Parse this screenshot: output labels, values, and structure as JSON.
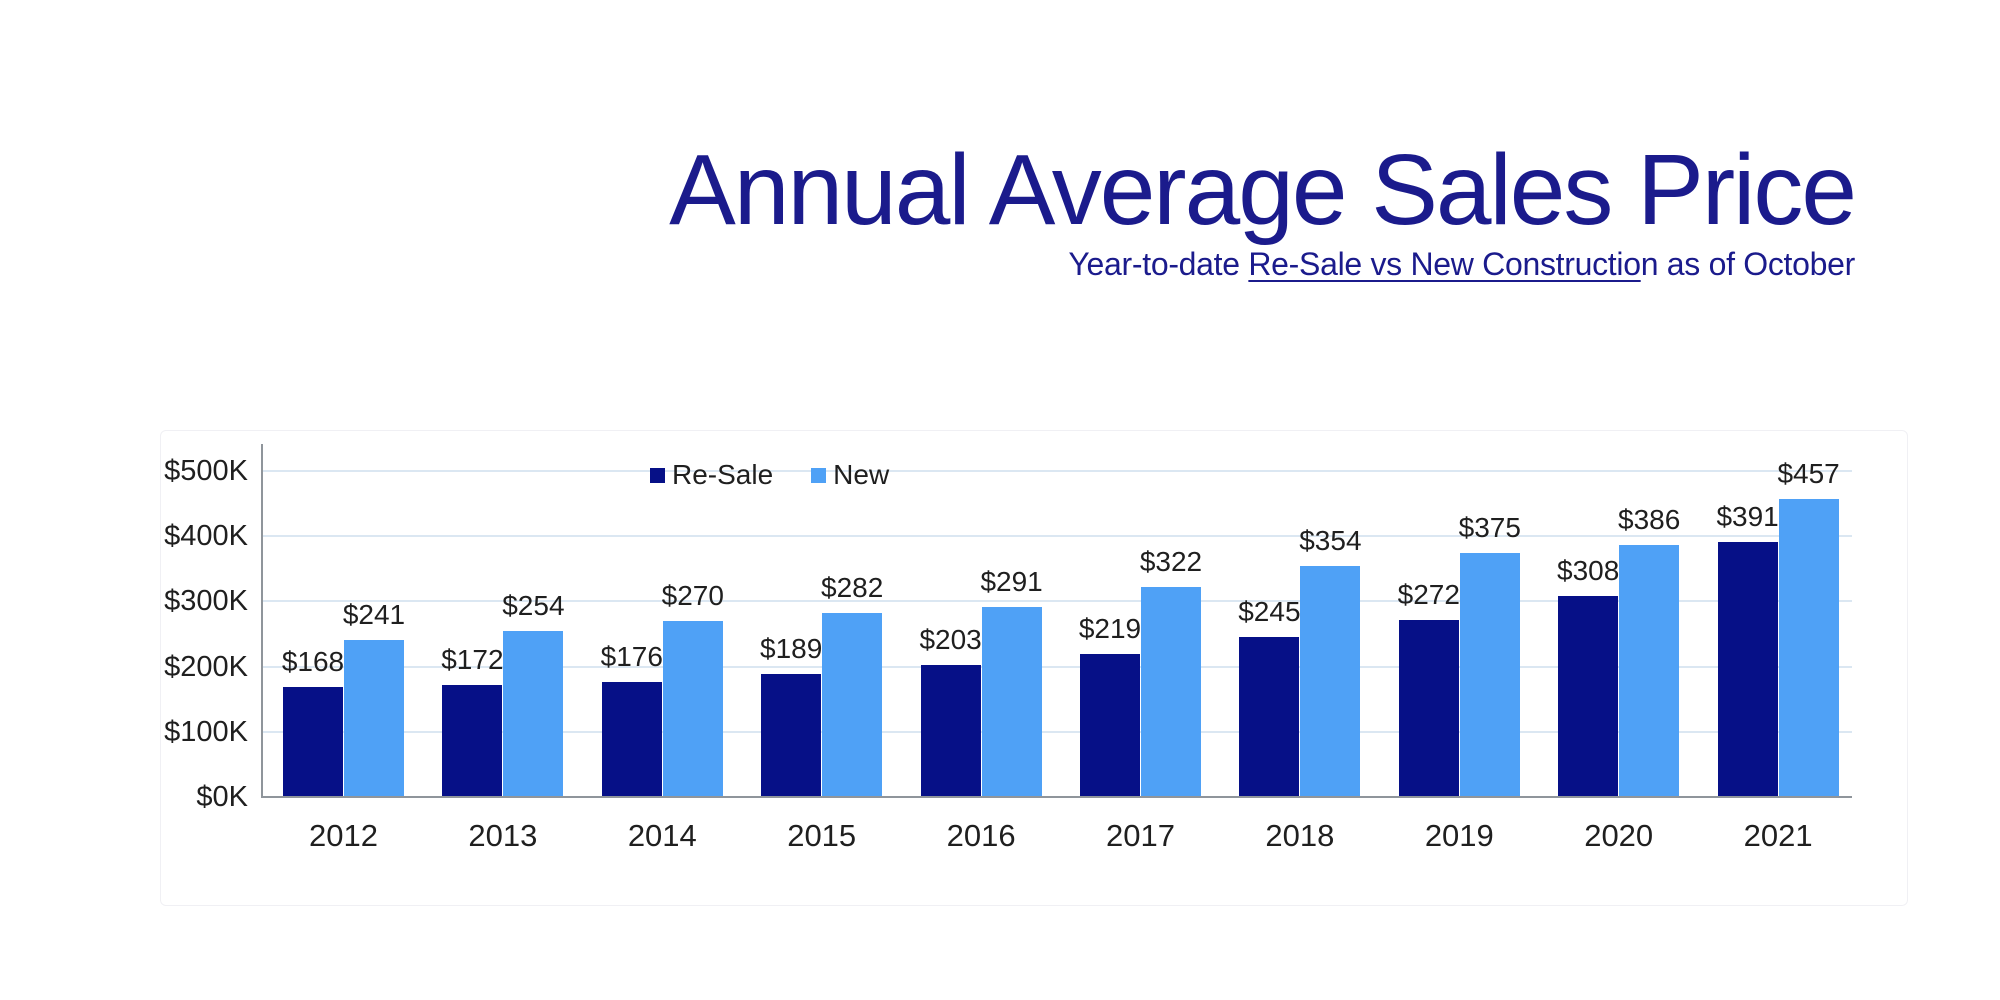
{
  "header": {
    "title": "Annual Average Sales Price",
    "subtitle_prefix": "Year-to-date ",
    "subtitle_underlined": "Re-Sale vs New Constructio",
    "subtitle_suffix": "n as of October",
    "title_color": "#1b1b8c"
  },
  "chart_data": {
    "type": "bar",
    "title": "Annual Average Sales Price",
    "subtitle": "Year-to-date Re-Sale vs New Construction as of October",
    "categories": [
      "2012",
      "2013",
      "2014",
      "2015",
      "2016",
      "2017",
      "2018",
      "2019",
      "2020",
      "2021"
    ],
    "series": [
      {
        "name": "Re-Sale",
        "color": "#061087",
        "values": [
          168,
          172,
          176,
          189,
          203,
          219,
          245,
          272,
          308,
          391
        ],
        "data_labels": [
          "$168",
          "$172",
          "$176",
          "$189",
          "$203",
          "$219",
          "$245",
          "$272",
          "$308",
          "$391"
        ]
      },
      {
        "name": "New",
        "color": "#4fa1f6",
        "values": [
          241,
          254,
          270,
          282,
          291,
          322,
          354,
          375,
          386,
          457
        ],
        "data_labels": [
          "$241",
          "$254",
          "$270",
          "$282",
          "$291",
          "$322",
          "$354",
          "$375",
          "$386",
          "$457"
        ]
      }
    ],
    "y_axis": {
      "min": 0,
      "max": 500,
      "tick_interval": 100,
      "tick_labels": [
        "$0K",
        "$100K",
        "$200K",
        "$300K",
        "$400K",
        "$500K"
      ]
    },
    "legend": {
      "position": "top-inside-left-center",
      "items": [
        "Re-Sale",
        "New"
      ]
    },
    "grid": true,
    "value_unit": "thousands of USD",
    "colors": {
      "gridline": "#dbe7f2",
      "axis_line": "#8f959b",
      "label_text": "#1f1f1f"
    }
  }
}
